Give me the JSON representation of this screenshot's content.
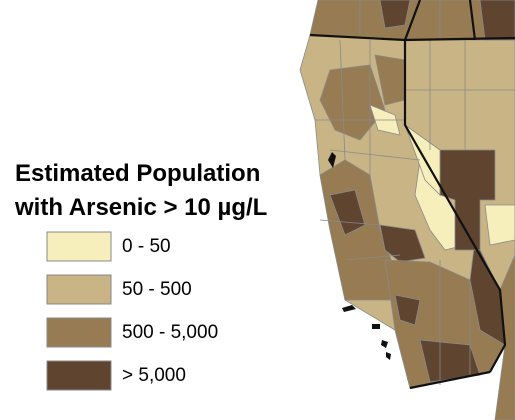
{
  "legend": {
    "title_lines": [
      "Estimated Population",
      "with Arsenic > 10 µg/L"
    ],
    "items": [
      {
        "label": "0 - 50",
        "color": "#f7efbb"
      },
      {
        "label": "50 - 500",
        "color": "#c9b486"
      },
      {
        "label": "500 - 5,000",
        "color": "#967b53"
      },
      {
        "label": "> 5,000",
        "color": "#5f4530"
      }
    ]
  }
}
